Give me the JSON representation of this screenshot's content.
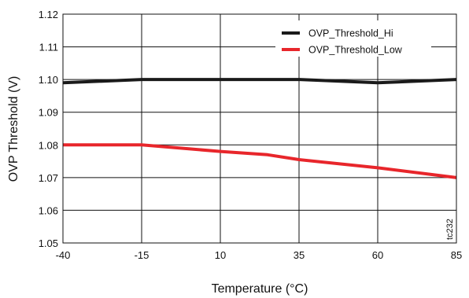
{
  "chart_data": {
    "type": "line",
    "title": "",
    "xlabel": "Temperature (°C)",
    "ylabel": "OVP Threshold (V)",
    "x_ticks": [
      "-40",
      "-15",
      "10",
      "35",
      "60",
      "85"
    ],
    "y_ticks": [
      "1.05",
      "1.06",
      "1.07",
      "1.08",
      "1.09",
      "1.10",
      "1.11",
      "1.12"
    ],
    "xlim": [
      -40,
      85
    ],
    "ylim": [
      1.05,
      1.12
    ],
    "grid": true,
    "legend_position": "top-right",
    "series": [
      {
        "name": "OVP_Threshold_Hi",
        "color": "#1a1a1a",
        "x": [
          -40,
          -15,
          10,
          35,
          60,
          85
        ],
        "y": [
          1.099,
          1.1,
          1.1,
          1.1,
          1.099,
          1.1
        ]
      },
      {
        "name": "OVP_Threshold_Low",
        "color": "#e8262b",
        "x": [
          -40,
          -15,
          10,
          25,
          35,
          60,
          85
        ],
        "y": [
          1.08,
          1.08,
          1.078,
          1.077,
          1.0755,
          1.073,
          1.07
        ]
      }
    ],
    "code_label": "tc232"
  }
}
